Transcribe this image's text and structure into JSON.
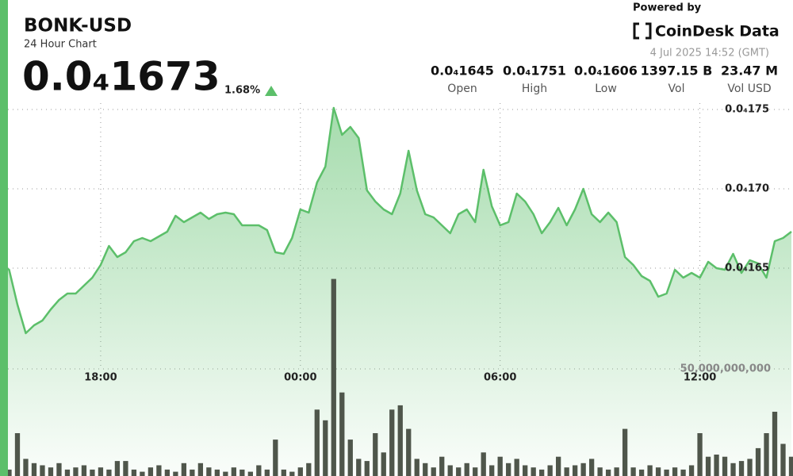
{
  "header": {
    "title": "BONK-USD",
    "subtitle": "24 Hour Chart",
    "price": "0.0₄1673",
    "change": "1.68%",
    "powered_by": "Powered by",
    "brand": "CoinDesk Data",
    "timestamp": "4 Jul 2025 14:52 (GMT)",
    "stats": [
      {
        "value": "0.0₄1645",
        "label": "Open"
      },
      {
        "value": "0.0₄1751",
        "label": "High"
      },
      {
        "value": "0.0₄1606",
        "label": "Low"
      },
      {
        "value": "1397.15 B",
        "label": "Vol"
      },
      {
        "value": "23.47 M",
        "label": "Vol USD"
      }
    ]
  },
  "chart_data": {
    "type": "line",
    "categories": [
      null,
      null,
      null,
      null,
      null,
      null,
      null,
      null,
      null,
      null,
      null,
      null,
      "18:00",
      null,
      null,
      null,
      null,
      null,
      null,
      null,
      null,
      null,
      null,
      null,
      null,
      null,
      null,
      null,
      null,
      null,
      null,
      null,
      null,
      null,
      null,
      null,
      "00:00",
      null,
      null,
      null,
      null,
      null,
      null,
      null,
      null,
      null,
      null,
      null,
      null,
      null,
      null,
      null,
      null,
      null,
      null,
      null,
      null,
      null,
      null,
      null,
      "06:00",
      null,
      null,
      null,
      null,
      null,
      null,
      null,
      null,
      null,
      null,
      null,
      null,
      null,
      null,
      null,
      null,
      null,
      null,
      null,
      null,
      null,
      null,
      null,
      "12:00",
      null,
      null,
      null,
      null,
      null,
      null,
      null,
      null,
      null,
      null,
      null
    ],
    "series": [
      {
        "type": "line",
        "color": "#5cbf6a",
        "values": [
          1.652e-05,
          1.649e-05,
          1.627e-05,
          1.609e-05,
          1.614e-05,
          1.617e-05,
          1.624e-05,
          1.63e-05,
          1.634e-05,
          1.634e-05,
          1.639e-05,
          1.644e-05,
          1.652e-05,
          1.664e-05,
          1.657e-05,
          1.66e-05,
          1.667e-05,
          1.669e-05,
          1.667e-05,
          1.67e-05,
          1.673e-05,
          1.683e-05,
          1.679e-05,
          1.682e-05,
          1.685e-05,
          1.681e-05,
          1.684e-05,
          1.685e-05,
          1.684e-05,
          1.677e-05,
          1.677e-05,
          1.677e-05,
          1.674e-05,
          1.66e-05,
          1.659e-05,
          1.669e-05,
          1.687e-05,
          1.685e-05,
          1.704e-05,
          1.714e-05,
          1.751e-05,
          1.734e-05,
          1.739e-05,
          1.732e-05,
          1.699e-05,
          1.692e-05,
          1.687e-05,
          1.684e-05,
          1.697e-05,
          1.724e-05,
          1.699e-05,
          1.684e-05,
          1.682e-05,
          1.677e-05,
          1.672e-05,
          1.684e-05,
          1.687e-05,
          1.679e-05,
          1.712e-05,
          1.689e-05,
          1.677e-05,
          1.679e-05,
          1.697e-05,
          1.692e-05,
          1.684e-05,
          1.672e-05,
          1.679e-05,
          1.688e-05,
          1.677e-05,
          1.687e-05,
          1.7e-05,
          1.684e-05,
          1.679e-05,
          1.685e-05,
          1.679e-05,
          1.657e-05,
          1.652e-05,
          1.645e-05,
          1.642e-05,
          1.632e-05,
          1.634e-05,
          1.649e-05,
          1.644e-05,
          1.647e-05,
          1.644e-05,
          1.654e-05,
          1.65e-05,
          1.649e-05,
          1.659e-05,
          1.647e-05,
          1.655e-05,
          1.653e-05,
          1.644e-05,
          1.667e-05,
          1.669e-05,
          1.673e-05
        ]
      },
      {
        "type": "bar",
        "axis": "y2",
        "color": "#4f564b",
        "values": [
          4000000000,
          3000000000,
          20000000000,
          8000000000,
          6000000000,
          5000000000,
          4000000000,
          6000000000,
          3000000000,
          4000000000,
          5000000000,
          3000000000,
          4000000000,
          3000000000,
          7000000000,
          7000000000,
          3000000000,
          2000000000,
          4000000000,
          5000000000,
          3000000000,
          2000000000,
          6000000000,
          3000000000,
          6000000000,
          4000000000,
          3000000000,
          2000000000,
          4000000000,
          3000000000,
          2000000000,
          5000000000,
          3000000000,
          17000000000,
          3000000000,
          2000000000,
          4000000000,
          6000000000,
          31000000000,
          26000000000,
          92000000000,
          39000000000,
          17000000000,
          8000000000,
          7000000000,
          20000000000,
          11000000000,
          31000000000,
          33000000000,
          22000000000,
          8000000000,
          6000000000,
          4000000000,
          9000000000,
          5000000000,
          4000000000,
          6000000000,
          4000000000,
          11000000000,
          5000000000,
          9000000000,
          6000000000,
          8000000000,
          5000000000,
          4000000000,
          3000000000,
          5000000000,
          9000000000,
          4000000000,
          5000000000,
          6000000000,
          8000000000,
          4000000000,
          3000000000,
          4000000000,
          22000000000,
          4000000000,
          3000000000,
          5000000000,
          4000000000,
          3000000000,
          4000000000,
          3000000000,
          5000000000,
          20000000000,
          9000000000,
          10000000000,
          9000000000,
          6000000000,
          7000000000,
          8000000000,
          13000000000,
          20000000000,
          30000000000,
          15000000000,
          9000000000
        ]
      }
    ],
    "ylim": [
      1.58e-05,
      1.76e-05
    ],
    "yticks": [
      {
        "value": 1.65e-05,
        "label": "0.0₄165"
      },
      {
        "value": 1.7e-05,
        "label": "0.0₄170"
      },
      {
        "value": 1.75e-05,
        "label": "0.0₄175"
      }
    ],
    "y2lim": [
      0,
      100000000000
    ],
    "y2ticks": [
      {
        "value": 50000000000,
        "label": "50,000,000,000"
      }
    ],
    "grid": true
  }
}
